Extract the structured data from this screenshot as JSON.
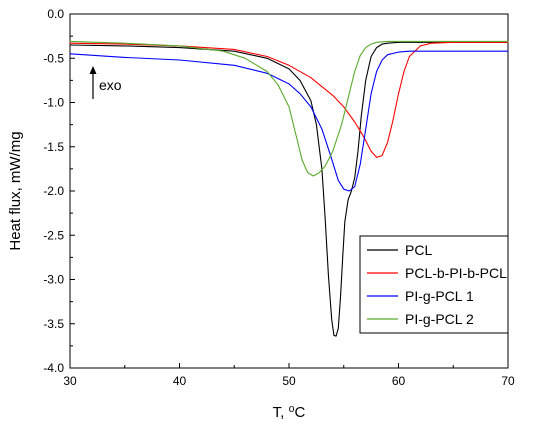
{
  "chart_data": {
    "type": "line",
    "title": "",
    "xlabel": "T, ⁰C",
    "ylabel": "Heat flux, mW/mg",
    "xlim": [
      30,
      70
    ],
    "ylim": [
      -4.0,
      0.0
    ],
    "x_ticks": [
      30,
      40,
      50,
      60,
      70
    ],
    "x_tick_labels": [
      "30",
      "40",
      "50",
      "60",
      "70"
    ],
    "y_ticks": [
      0.0,
      -0.5,
      -1.0,
      -1.5,
      -2.0,
      -2.5,
      -3.0,
      -3.5,
      -4.0
    ],
    "y_tick_labels": [
      "0.0",
      "-0.5",
      "-1.0",
      "-1.5",
      "-2.0",
      "-2.5",
      "-3.0",
      "-3.5",
      "-4.0"
    ],
    "grid": false,
    "legend_position": "bottom-right",
    "annotation": {
      "text": "exo",
      "arrow": "up",
      "x": 32,
      "y": -0.95
    },
    "series": [
      {
        "name": "PCL",
        "color": "#000000",
        "x": [
          30,
          35,
          40,
          45,
          48,
          50,
          51,
          52,
          52.5,
          53,
          53.3,
          53.6,
          53.9,
          54.1,
          54.3,
          54.5,
          54.7,
          54.9,
          55.1,
          55.4,
          55.7,
          56,
          56.3,
          56.6,
          57,
          57.5,
          58,
          58.5,
          59,
          60,
          62,
          65,
          70
        ],
        "y": [
          -0.35,
          -0.36,
          -0.38,
          -0.42,
          -0.5,
          -0.62,
          -0.75,
          -0.98,
          -1.25,
          -1.75,
          -2.3,
          -2.95,
          -3.45,
          -3.63,
          -3.64,
          -3.55,
          -3.2,
          -2.75,
          -2.35,
          -2.1,
          -2.0,
          -1.85,
          -1.55,
          -1.15,
          -0.75,
          -0.48,
          -0.38,
          -0.34,
          -0.33,
          -0.32,
          -0.32,
          -0.32,
          -0.32
        ]
      },
      {
        "name": "PCL-b-PI-b-PCL",
        "color": "#ff0000",
        "x": [
          30,
          35,
          40,
          45,
          48,
          50,
          52,
          54,
          55,
          56,
          56.5,
          57,
          57.5,
          58,
          58.5,
          59,
          59.5,
          60,
          60.5,
          61,
          62,
          63,
          65,
          70
        ],
        "y": [
          -0.33,
          -0.34,
          -0.36,
          -0.4,
          -0.48,
          -0.58,
          -0.72,
          -0.92,
          -1.05,
          -1.22,
          -1.32,
          -1.43,
          -1.55,
          -1.62,
          -1.6,
          -1.45,
          -1.2,
          -0.9,
          -0.65,
          -0.48,
          -0.36,
          -0.33,
          -0.32,
          -0.32
        ]
      },
      {
        "name": "PI-g-PCL 1",
        "color": "#0000ff",
        "x": [
          30,
          35,
          40,
          45,
          48,
          50,
          51,
          52,
          53,
          53.8,
          54.5,
          55,
          55.5,
          56,
          56.5,
          57,
          57.5,
          58,
          58.5,
          59,
          60,
          61,
          63,
          65,
          70
        ],
        "y": [
          -0.45,
          -0.49,
          -0.52,
          -0.58,
          -0.67,
          -0.79,
          -0.9,
          -1.05,
          -1.3,
          -1.6,
          -1.88,
          -1.98,
          -2.0,
          -1.95,
          -1.7,
          -1.3,
          -0.9,
          -0.65,
          -0.52,
          -0.46,
          -0.43,
          -0.42,
          -0.42,
          -0.42,
          -0.42
        ]
      },
      {
        "name": "PI-g-PCL 2",
        "color": "#5aaa2d",
        "x": [
          30,
          35,
          40,
          44,
          46,
          48,
          49,
          50,
          50.7,
          51.2,
          51.7,
          52.2,
          52.7,
          53.3,
          54,
          54.8,
          55.5,
          56,
          56.5,
          57,
          57.5,
          58,
          59,
          61,
          65,
          70
        ],
        "y": [
          -0.31,
          -0.33,
          -0.36,
          -0.42,
          -0.5,
          -0.65,
          -0.8,
          -1.05,
          -1.4,
          -1.65,
          -1.79,
          -1.83,
          -1.8,
          -1.72,
          -1.55,
          -1.25,
          -0.9,
          -0.65,
          -0.47,
          -0.38,
          -0.34,
          -0.32,
          -0.31,
          -0.31,
          -0.31,
          -0.31
        ]
      }
    ]
  }
}
